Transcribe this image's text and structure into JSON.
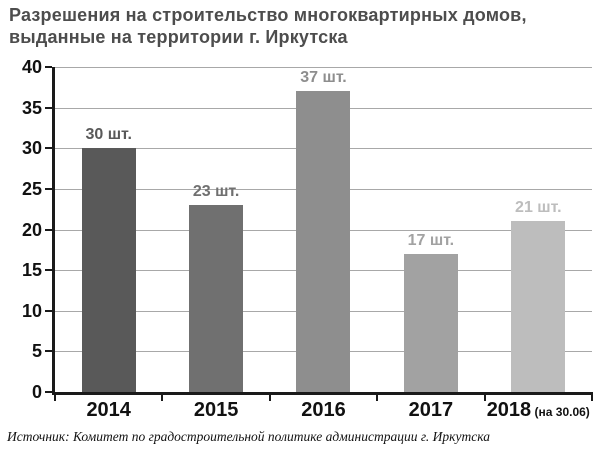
{
  "title": {
    "line1": "Разрешения на строительство многоквартирных домов,",
    "line2": "выданные на территории г. Иркутска"
  },
  "source": "Источник: Комитет по градостроительной политике администрации г. Иркутска",
  "chart_data": {
    "type": "bar",
    "title": "Разрешения на строительство многоквартирных домов, выданные на территории г. Иркутска",
    "categories": [
      "2014",
      "2015",
      "2016",
      "2017",
      "2018"
    ],
    "category_notes": [
      "",
      "",
      "",
      "",
      "(на 30.06)"
    ],
    "values": [
      30,
      23,
      37,
      17,
      21
    ],
    "value_labels": [
      "30 шт.",
      "23 шт.",
      "37 шт.",
      "17 шт.",
      "21 шт."
    ],
    "bar_colors": [
      "#595959",
      "#707070",
      "#8e8e8e",
      "#a2a2a2",
      "#bdbdbd"
    ],
    "xlabel": "",
    "ylabel": "",
    "ylim": [
      0,
      40
    ],
    "yticks": [
      0,
      5,
      10,
      15,
      20,
      25,
      30,
      35,
      40
    ],
    "grid": true,
    "legend": "none"
  },
  "colors": {
    "gridline": "#a8a8a8",
    "axis": "#1a1a1a",
    "title_text": "#4d4d4d",
    "tick_text": "#111111"
  }
}
